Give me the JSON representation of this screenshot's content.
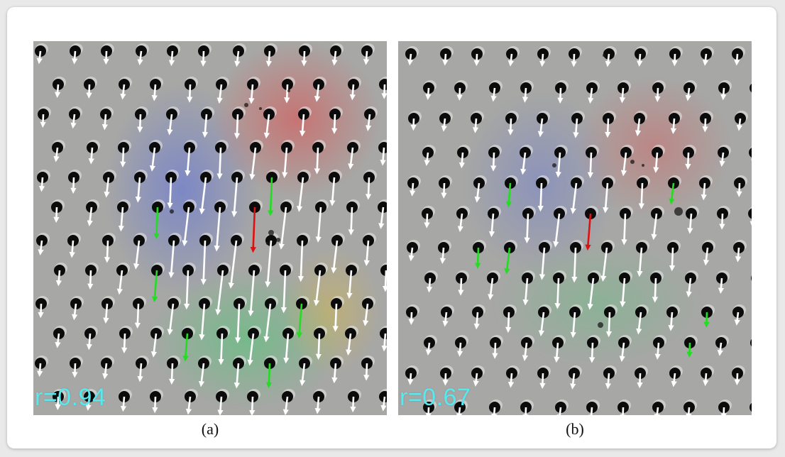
{
  "colors": {
    "background_gray": "#a7a7a5",
    "hole": "#0b0b0b",
    "arrow_primary": "#ffffff",
    "arrow_highlight_green": "#22dd22",
    "arrow_highlight_red": "#dd1111",
    "label_cyan": "#55eaf0",
    "tint_blue": "#5a6ee0",
    "tint_red": "#e04a4a",
    "tint_green": "#3ad06a",
    "tint_yellow": "#d8b840"
  },
  "figure": {
    "panels": [
      {
        "id": "a",
        "correlation_label": "r=0.94",
        "caption": "(a)"
      },
      {
        "id": "b",
        "correlation_label": "r=0.67",
        "caption": "(b)"
      }
    ]
  }
}
